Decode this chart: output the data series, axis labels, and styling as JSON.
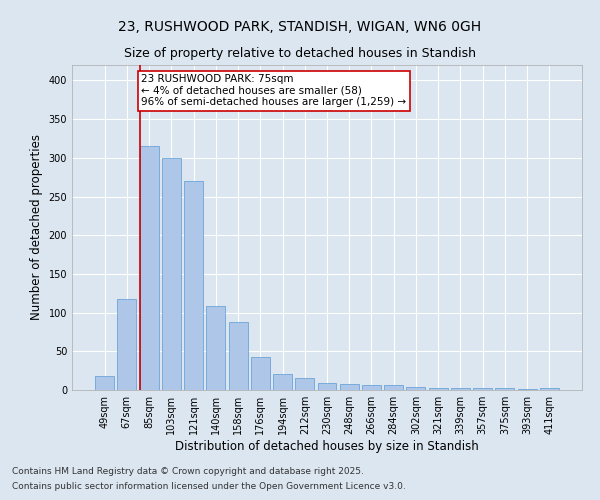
{
  "title_line1": "23, RUSHWOOD PARK, STANDISH, WIGAN, WN6 0GH",
  "title_line2": "Size of property relative to detached houses in Standish",
  "xlabel": "Distribution of detached houses by size in Standish",
  "ylabel": "Number of detached properties",
  "categories": [
    "49sqm",
    "67sqm",
    "85sqm",
    "103sqm",
    "121sqm",
    "140sqm",
    "158sqm",
    "176sqm",
    "194sqm",
    "212sqm",
    "230sqm",
    "248sqm",
    "266sqm",
    "284sqm",
    "302sqm",
    "321sqm",
    "339sqm",
    "357sqm",
    "375sqm",
    "393sqm",
    "411sqm"
  ],
  "values": [
    18,
    118,
    315,
    300,
    270,
    108,
    88,
    43,
    21,
    15,
    9,
    8,
    7,
    6,
    4,
    2,
    2,
    3,
    2,
    1,
    2
  ],
  "bar_color": "#aec6e8",
  "bar_edge_color": "#5b9bd5",
  "annotation_text": "23 RUSHWOOD PARK: 75sqm\n← 4% of detached houses are smaller (58)\n96% of semi-detached houses are larger (1,259) →",
  "annotation_box_color": "#ffffff",
  "annotation_box_edge": "#cc0000",
  "ylim": [
    0,
    420
  ],
  "yticks": [
    0,
    50,
    100,
    150,
    200,
    250,
    300,
    350,
    400
  ],
  "background_color": "#dce6f0",
  "plot_bg_color": "#dce6f0",
  "footer_line1": "Contains HM Land Registry data © Crown copyright and database right 2025.",
  "footer_line2": "Contains public sector information licensed under the Open Government Licence v3.0.",
  "grid_color": "#ffffff",
  "title_fontsize": 10,
  "subtitle_fontsize": 9,
  "axis_label_fontsize": 8.5,
  "tick_fontsize": 7,
  "annotation_fontsize": 7.5,
  "footer_fontsize": 6.5,
  "red_line_index": 1.575
}
